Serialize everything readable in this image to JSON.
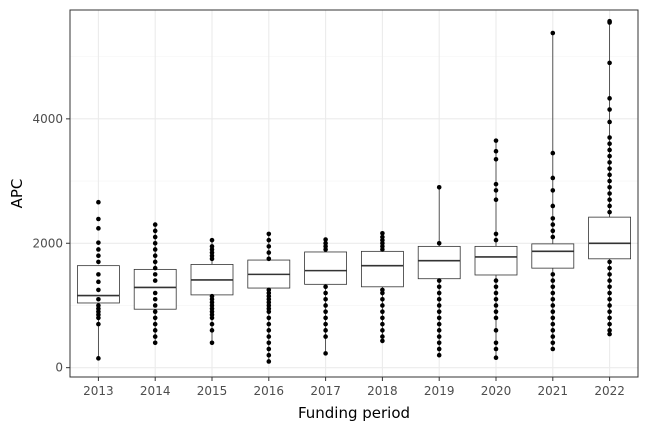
{
  "chart_data": {
    "type": "boxplot",
    "title": "",
    "xlabel": "Funding period",
    "ylabel": "APC",
    "ylim": [
      -150,
      5750
    ],
    "yticks": [
      0,
      2000,
      4000
    ],
    "grid": true,
    "legend": "none",
    "colors": {
      "box_fill": "#ffffff",
      "box_stroke": "#333333",
      "points": "#000000",
      "grid_major": "#ebebeb",
      "grid_minor": "#f5f5f5",
      "panel_border": "#333333"
    },
    "categories": [
      "2013",
      "2014",
      "2015",
      "2016",
      "2017",
      "2018",
      "2019",
      "2020",
      "2021",
      "2022"
    ],
    "boxes": [
      {
        "q1": 1040,
        "median": 1160,
        "q3": 1640,
        "whisker_low": 150,
        "whisker_high": 1640
      },
      {
        "q1": 940,
        "median": 1290,
        "q3": 1580,
        "whisker_low": 400,
        "whisker_high": 2300
      },
      {
        "q1": 1170,
        "median": 1410,
        "q3": 1660,
        "whisker_low": 400,
        "whisker_high": 2050
      },
      {
        "q1": 1280,
        "median": 1500,
        "q3": 1730,
        "whisker_low": 100,
        "whisker_high": 2150
      },
      {
        "q1": 1340,
        "median": 1560,
        "q3": 1860,
        "whisker_low": 230,
        "whisker_high": 2060
      },
      {
        "q1": 1300,
        "median": 1640,
        "q3": 1870,
        "whisker_low": 430,
        "whisker_high": 2160
      },
      {
        "q1": 1430,
        "median": 1720,
        "q3": 1950,
        "whisker_low": 200,
        "whisker_high": 2900
      },
      {
        "q1": 1490,
        "median": 1780,
        "q3": 1950,
        "whisker_low": 160,
        "whisker_high": 3650
      },
      {
        "q1": 1600,
        "median": 1870,
        "q3": 1990,
        "whisker_low": 300,
        "whisker_high": 5380
      },
      {
        "q1": 1750,
        "median": 2000,
        "q3": 2420,
        "whisker_low": 540,
        "whisker_high": 5570
      }
    ],
    "outliers": [
      [
        2660,
        2390,
        2240,
        2010,
        1900,
        1800,
        1700,
        1500,
        1380,
        1250,
        1100,
        1000,
        950,
        900,
        850,
        800,
        700,
        150
      ],
      [
        2300,
        2200,
        2100,
        2000,
        1900,
        1800,
        1700,
        1600,
        1500,
        1400,
        1200,
        1100,
        1000,
        900,
        800,
        700,
        600,
        500,
        400
      ],
      [
        2050,
        1950,
        1900,
        1850,
        1800,
        1750,
        1150,
        1100,
        1050,
        1000,
        950,
        900,
        850,
        800,
        700,
        600,
        400
      ],
      [
        2150,
        2050,
        1950,
        1850,
        1750,
        1250,
        1200,
        1150,
        1100,
        1050,
        1000,
        950,
        900,
        800,
        700,
        600,
        500,
        400,
        300,
        200,
        100
      ],
      [
        2060,
        2000,
        1950,
        1900,
        1300,
        1200,
        1100,
        1000,
        900,
        800,
        700,
        600,
        500,
        230
      ],
      [
        2160,
        2100,
        2050,
        2000,
        1950,
        1900,
        1250,
        1200,
        1100,
        1000,
        900,
        800,
        700,
        600,
        500,
        430
      ],
      [
        2900,
        2000,
        1400,
        1300,
        1200,
        1100,
        1000,
        900,
        800,
        700,
        600,
        500,
        400,
        300,
        200
      ],
      [
        3650,
        3480,
        3350,
        2950,
        2850,
        2700,
        2150,
        2050,
        1400,
        1300,
        1200,
        1100,
        1000,
        900,
        800,
        600,
        400,
        300,
        160
      ],
      [
        5380,
        3450,
        3050,
        2850,
        2600,
        2400,
        2300,
        2200,
        2100,
        1500,
        1400,
        1300,
        1200,
        1100,
        1000,
        900,
        800,
        700,
        600,
        500,
        400,
        300
      ],
      [
        5570,
        5550,
        4900,
        4330,
        4150,
        3950,
        3700,
        3600,
        3500,
        3400,
        3300,
        3200,
        3100,
        3000,
        2900,
        2800,
        2700,
        2600,
        2500,
        1700,
        1600,
        1500,
        1400,
        1300,
        1200,
        1100,
        1000,
        900,
        800,
        700,
        600,
        540
      ]
    ]
  }
}
